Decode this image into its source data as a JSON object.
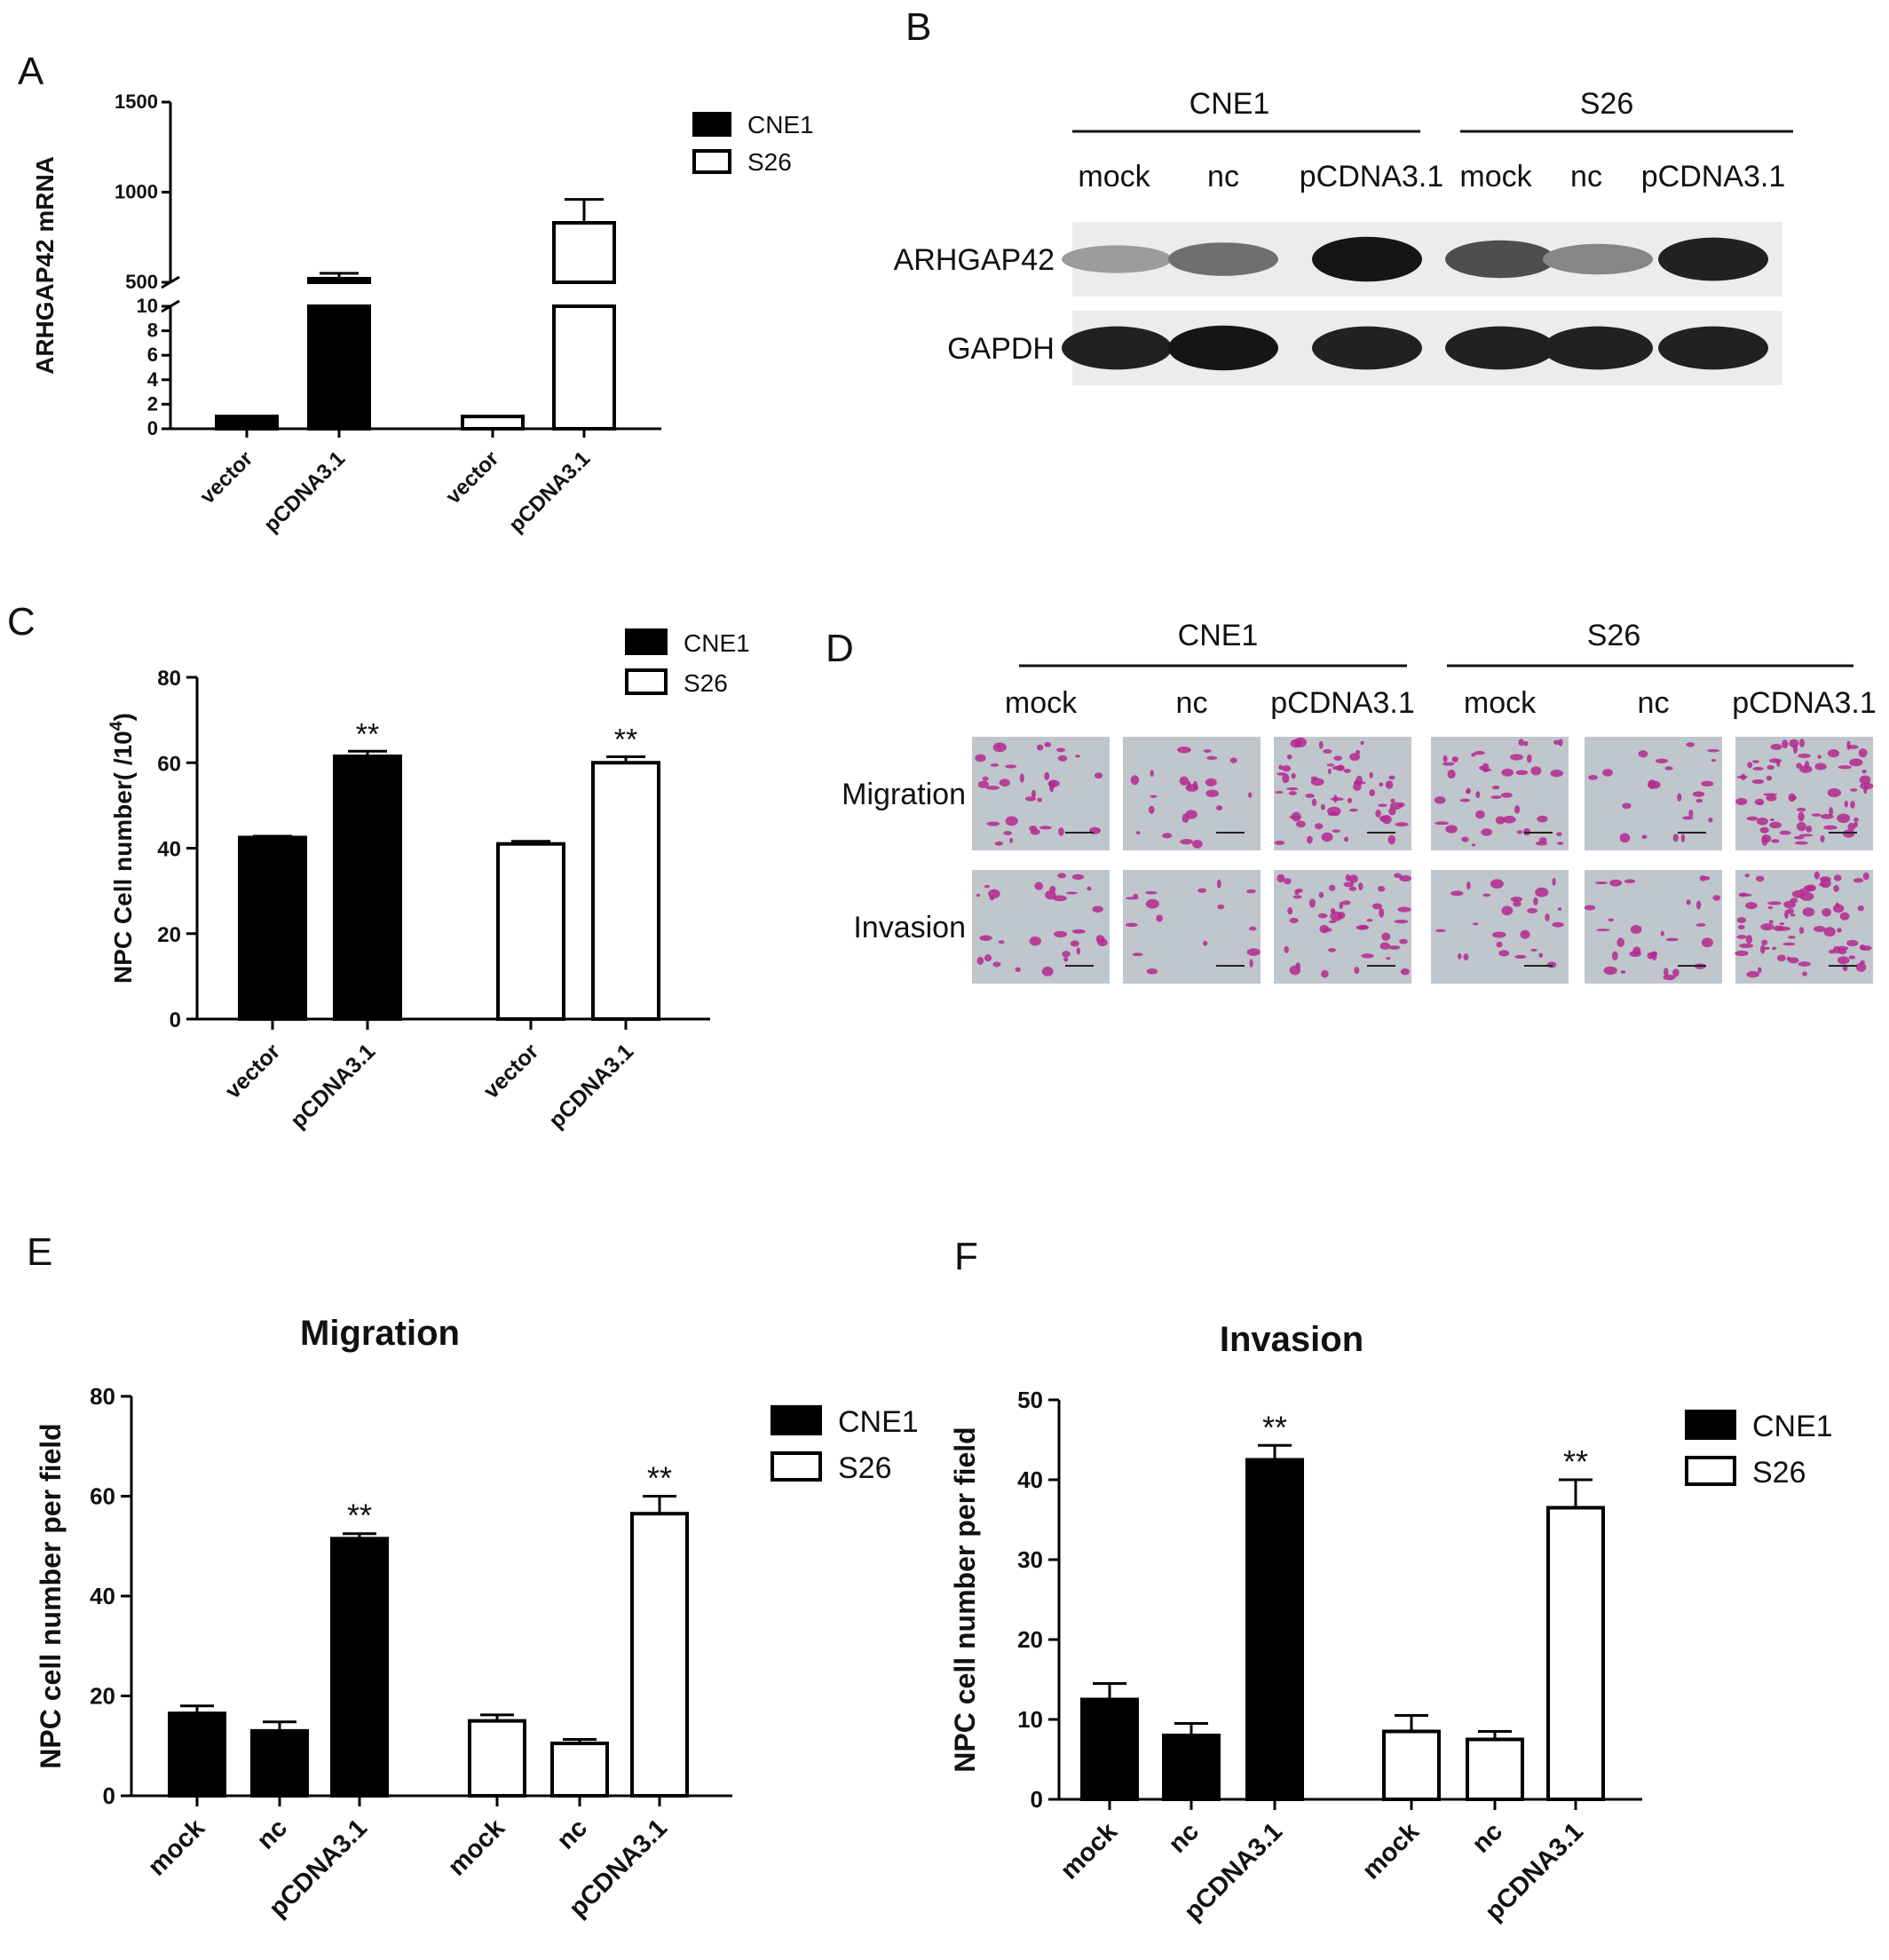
{
  "panel_letters": {
    "a": "A",
    "b": "B",
    "c": "C",
    "d": "D",
    "e": "E",
    "f": "F"
  },
  "chart_data": [
    {
      "id": "A",
      "type": "bar",
      "title": "",
      "ylabel": "ARHGAP42 mRNA",
      "categories": [
        "vector",
        "pCDNA3.1",
        "vector",
        "pCDNA3.1"
      ],
      "groups": [
        "CNE1",
        "CNE1",
        "S26",
        "S26"
      ],
      "values": [
        1,
        520,
        1,
        830
      ],
      "errors": [
        0,
        30,
        0,
        130
      ],
      "axis_break": {
        "lower": [
          0,
          10
        ],
        "upper": [
          500,
          1500
        ]
      },
      "yticks_lower": [
        0,
        2,
        4,
        6,
        8,
        10
      ],
      "yticks_upper": [
        500,
        1000,
        1500
      ],
      "legend": [
        {
          "name": "CNE1",
          "fill": "#000000"
        },
        {
          "name": "S26",
          "fill": "#ffffff"
        }
      ],
      "significance": [
        "",
        "",
        "",
        ""
      ]
    },
    {
      "id": "C",
      "type": "bar",
      "title": "",
      "ylabel": "NPC Cell  number( /10",
      "ylabel_sup": "4",
      "ylabel_tail": ")",
      "categories": [
        "vector",
        "pCDNA3.1",
        "vector",
        "pCDNA3.1"
      ],
      "groups": [
        "CNE1",
        "CNE1",
        "S26",
        "S26"
      ],
      "values": [
        42.5,
        61.5,
        41,
        60
      ],
      "errors": [
        0.3,
        1.2,
        0.6,
        1.4
      ],
      "ylim": [
        0,
        80
      ],
      "yticks": [
        0,
        20,
        40,
        60,
        80
      ],
      "legend": [
        {
          "name": "CNE1",
          "fill": "#000000"
        },
        {
          "name": "S26",
          "fill": "#ffffff"
        }
      ],
      "significance": [
        "",
        "**",
        "",
        "**"
      ]
    },
    {
      "id": "E",
      "type": "bar",
      "title": "Migration",
      "ylabel": "NPC cell number per field",
      "categories": [
        "mock",
        "nc",
        "pCDNA3.1",
        "mock",
        "nc",
        "pCDNA3.1"
      ],
      "groups": [
        "CNE1",
        "CNE1",
        "CNE1",
        "S26",
        "S26",
        "S26"
      ],
      "values": [
        16.5,
        13,
        51.5,
        15,
        10.5,
        56.5
      ],
      "errors": [
        1.5,
        1.8,
        1.0,
        1.2,
        0.8,
        3.5
      ],
      "ylim": [
        0,
        80
      ],
      "yticks": [
        0,
        20,
        40,
        60,
        80
      ],
      "legend": [
        {
          "name": "CNE1",
          "fill": "#000000"
        },
        {
          "name": "S26",
          "fill": "#ffffff"
        }
      ],
      "significance": [
        "",
        "",
        "**",
        "",
        "",
        "**"
      ]
    },
    {
      "id": "F",
      "type": "bar",
      "title": "Invasion",
      "ylabel": "NPC cell number per field",
      "categories": [
        "mock",
        "nc",
        "pCDNA3.1",
        "mock",
        "nc",
        "pCDNA3.1"
      ],
      "groups": [
        "CNE1",
        "CNE1",
        "CNE1",
        "S26",
        "S26",
        "S26"
      ],
      "values": [
        12.5,
        8,
        42.5,
        8.5,
        7.5,
        36.5
      ],
      "errors": [
        2,
        1.5,
        1.8,
        2,
        1,
        3.5
      ],
      "ylim": [
        0,
        50
      ],
      "yticks": [
        0,
        10,
        20,
        30,
        40,
        50
      ],
      "legend": [
        {
          "name": "CNE1",
          "fill": "#000000"
        },
        {
          "name": "S26",
          "fill": "#ffffff"
        }
      ],
      "significance": [
        "",
        "",
        "**",
        "",
        "",
        "**"
      ]
    }
  ],
  "western_blot": {
    "groups": [
      "CNE1",
      "S26"
    ],
    "lanes": [
      "mock",
      "nc",
      "pCDNA3.1",
      "mock",
      "nc",
      "pCDNA3.1"
    ],
    "rows": [
      {
        "label": "ARHGAP42",
        "intensity": [
          0.35,
          0.55,
          0.95,
          0.7,
          0.45,
          0.9
        ]
      },
      {
        "label": "GAPDH",
        "intensity": [
          0.9,
          0.95,
          0.9,
          0.9,
          0.9,
          0.9
        ]
      }
    ]
  },
  "transwell": {
    "groups": [
      "CNE1",
      "S26"
    ],
    "columns": [
      "mock",
      "nc",
      "pCDNA3.1",
      "mock",
      "nc",
      "pCDNA3.1"
    ],
    "rows": [
      {
        "label": "Migration",
        "density": [
          0.35,
          0.2,
          0.75,
          0.5,
          0.2,
          0.85
        ]
      },
      {
        "label": "Invasion",
        "density": [
          0.3,
          0.12,
          0.55,
          0.25,
          0.3,
          0.9
        ]
      }
    ],
    "colors": {
      "background": "#bfc6cc",
      "cells": "#b4288f"
    }
  }
}
